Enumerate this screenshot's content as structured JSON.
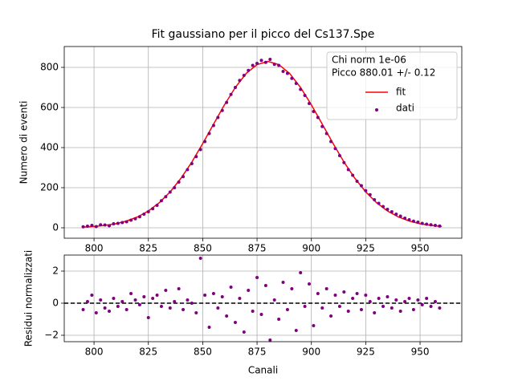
{
  "chart_data": [
    {
      "type": "scatter",
      "title": "Fit gaussiano per il picco del Cs137.Spe",
      "y_label": "Numero di eventi",
      "x": [
        795,
        797,
        799,
        801,
        803,
        805,
        807,
        809,
        811,
        813,
        815,
        817,
        819,
        821,
        823,
        825,
        827,
        829,
        831,
        833,
        835,
        837,
        839,
        841,
        843,
        845,
        847,
        849,
        851,
        853,
        855,
        857,
        859,
        861,
        863,
        865,
        867,
        869,
        871,
        873,
        875,
        877,
        879,
        881,
        883,
        885,
        887,
        889,
        891,
        893,
        895,
        897,
        899,
        901,
        903,
        905,
        907,
        909,
        911,
        913,
        915,
        917,
        919,
        921,
        923,
        925,
        927,
        929,
        931,
        933,
        935,
        937,
        939,
        941,
        943,
        945,
        947,
        949,
        951,
        953,
        955,
        957,
        959
      ],
      "series": [
        {
          "name": "fit",
          "type": "line",
          "color": "#ff0000",
          "x": [
            795,
            800,
            805,
            810,
            815,
            820,
            825,
            830,
            835,
            840,
            845,
            850,
            855,
            860,
            865,
            870,
            875,
            880,
            885,
            890,
            895,
            900,
            905,
            910,
            915,
            920,
            925,
            930,
            935,
            940,
            945,
            950,
            955,
            960
          ],
          "values": [
            3.5,
            6.5,
            12,
            20,
            34,
            54,
            84,
            125,
            179,
            247,
            328,
            420,
            517,
            613,
            700,
            770,
            814,
            830,
            814,
            770,
            700,
            613,
            517,
            420,
            328,
            247,
            179,
            125,
            84,
            54,
            34,
            20,
            12,
            6.5
          ]
        },
        {
          "name": "dati",
          "type": "scatter",
          "color": "#800080",
          "values": [
            5,
            8,
            12,
            6,
            15,
            14,
            10,
            20,
            22,
            26,
            30,
            38,
            45,
            55,
            68,
            80,
            95,
            112,
            135,
            155,
            178,
            200,
            228,
            255,
            290,
            320,
            355,
            390,
            430,
            470,
            510,
            550,
            585,
            625,
            665,
            700,
            735,
            760,
            785,
            810,
            820,
            835,
            825,
            840,
            815,
            810,
            780,
            770,
            745,
            720,
            690,
            660,
            620,
            580,
            550,
            505,
            470,
            430,
            395,
            360,
            325,
            290,
            262,
            232,
            210,
            185,
            165,
            140,
            122,
            106,
            92,
            80,
            68,
            58,
            48,
            40,
            33,
            28,
            22,
            18,
            15,
            12,
            9
          ]
        }
      ],
      "legend_title": [
        "Chi norm 1e-06",
        "Picco 880.01 +/- 0.12"
      ],
      "legend": "upper right",
      "xlim": [
        786.3,
        969.2
      ],
      "xticks": [
        800,
        825,
        850,
        875,
        900,
        925,
        950
      ],
      "ylim": [
        -52,
        904
      ],
      "yticks": [
        0,
        200,
        400,
        600,
        800
      ],
      "grid": true
    },
    {
      "type": "scatter",
      "x_label": "Canali",
      "y_label": "Residui normalizzati",
      "x": [
        795,
        797,
        799,
        801,
        803,
        805,
        807,
        809,
        811,
        813,
        815,
        817,
        819,
        821,
        823,
        825,
        827,
        829,
        831,
        833,
        835,
        837,
        839,
        841,
        843,
        845,
        847,
        849,
        851,
        853,
        855,
        857,
        859,
        861,
        863,
        865,
        867,
        869,
        871,
        873,
        875,
        877,
        879,
        881,
        883,
        885,
        887,
        889,
        891,
        893,
        895,
        897,
        899,
        901,
        903,
        905,
        907,
        909,
        911,
        913,
        915,
        917,
        919,
        921,
        923,
        925,
        927,
        929,
        931,
        933,
        935,
        937,
        939,
        941,
        943,
        945,
        947,
        949,
        951,
        953,
        955,
        957,
        959
      ],
      "series": [
        {
          "type": "scatter",
          "color": "#800080",
          "values": [
            -0.4,
            0.1,
            0.5,
            -0.6,
            0.2,
            -0.3,
            -0.5,
            0.3,
            -0.2,
            0.1,
            -0.4,
            0.6,
            0.2,
            -0.1,
            0.4,
            -0.9,
            0.3,
            0.5,
            -0.2,
            0.8,
            -0.3,
            0.1,
            0.9,
            -0.4,
            0.2,
            0.0,
            -0.6,
            2.8,
            0.5,
            -1.5,
            0.6,
            -0.3,
            0.4,
            -0.8,
            1.0,
            -1.2,
            0.3,
            -1.8,
            0.8,
            -0.5,
            1.6,
            -0.7,
            1.1,
            -2.3,
            0.2,
            -1.0,
            1.3,
            -0.4,
            0.9,
            -1.7,
            1.9,
            -0.2,
            1.2,
            -1.4,
            0.6,
            -0.3,
            0.9,
            -0.8,
            0.5,
            -0.2,
            0.7,
            -0.5,
            0.3,
            0.6,
            -0.4,
            0.5,
            0.1,
            -0.6,
            0.3,
            -0.2,
            0.4,
            -0.3,
            0.2,
            -0.5,
            0.1,
            0.3,
            -0.4,
            0.2,
            -0.1,
            0.3,
            -0.2,
            0.1,
            -0.3
          ]
        }
      ],
      "reference_line": 0,
      "xlim": [
        786.3,
        969.2
      ],
      "xticks": [
        800,
        825,
        850,
        875,
        900,
        925,
        950
      ],
      "ylim": [
        -2.4,
        3.0
      ],
      "yticks": [
        {
          "value": -2,
          "label": "−2"
        },
        0,
        2
      ],
      "grid": true
    }
  ]
}
